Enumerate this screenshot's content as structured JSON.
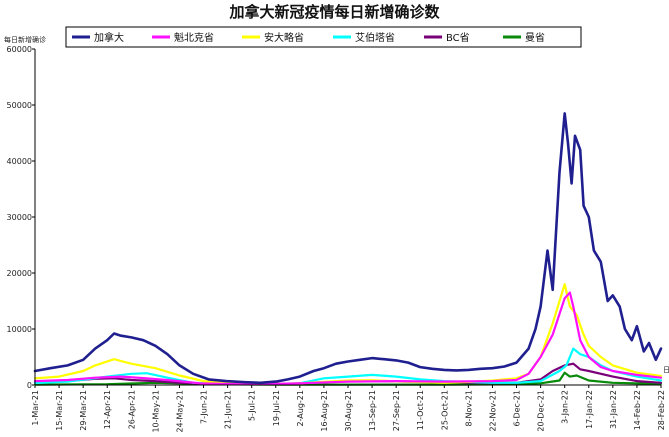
{
  "chart_data": {
    "type": "line",
    "title": "加拿大新冠疫情每日新增确诊数",
    "ylabel": "每日新增确诊",
    "xlabel": "日期",
    "ylim": [
      0,
      60000
    ],
    "yticks": [
      0,
      10000,
      20000,
      30000,
      40000,
      50000,
      60000
    ],
    "xlim": [
      "2021-03-01",
      "2022-02-28"
    ],
    "grid": false,
    "legend_position": "top",
    "x_tick_labels": [
      "1-Mar-21",
      "15-Mar-21",
      "29-Mar-21",
      "12-Apr-21",
      "26-Apr-21",
      "10-May-21",
      "24-May-21",
      "7-Jun-21",
      "21-Jun-21",
      "5-Jul-21",
      "19-Jul-21",
      "2-Aug-21",
      "16-Aug-21",
      "30-Aug-21",
      "13-Sep-21",
      "27-Sep-21",
      "11-Oct-21",
      "25-Oct-21",
      "8-Nov-21",
      "22-Nov-21",
      "6-Dec-21",
      "20-Dec-21",
      "3-Jan-22",
      "17-Jan-22",
      "31-Jan-22",
      "14-Feb-22",
      "28-Feb-22"
    ],
    "x_tick_dates": [
      "2021-03-01",
      "2021-03-15",
      "2021-03-29",
      "2021-04-12",
      "2021-04-26",
      "2021-05-10",
      "2021-05-24",
      "2021-06-07",
      "2021-06-21",
      "2021-07-05",
      "2021-07-19",
      "2021-08-02",
      "2021-08-16",
      "2021-08-30",
      "2021-09-13",
      "2021-09-27",
      "2021-10-11",
      "2021-10-25",
      "2021-11-08",
      "2021-11-22",
      "2021-12-06",
      "2021-12-20",
      "2022-01-03",
      "2022-01-17",
      "2022-01-31",
      "2022-02-14",
      "2022-02-28"
    ],
    "series": [
      {
        "name": "加拿大",
        "color": "#1f1f8f",
        "width": 2.6,
        "points": [
          [
            "2021-03-01",
            2500
          ],
          [
            "2021-03-10",
            3000
          ],
          [
            "2021-03-20",
            3500
          ],
          [
            "2021-03-29",
            4500
          ],
          [
            "2021-04-05",
            6500
          ],
          [
            "2021-04-12",
            8000
          ],
          [
            "2021-04-16",
            9200
          ],
          [
            "2021-04-20",
            8800
          ],
          [
            "2021-04-26",
            8500
          ],
          [
            "2021-05-03",
            8000
          ],
          [
            "2021-05-10",
            7000
          ],
          [
            "2021-05-17",
            5500
          ],
          [
            "2021-05-24",
            3500
          ],
          [
            "2021-06-01",
            2000
          ],
          [
            "2021-06-10",
            1000
          ],
          [
            "2021-06-20",
            700
          ],
          [
            "2021-07-01",
            500
          ],
          [
            "2021-07-10",
            400
          ],
          [
            "2021-07-19",
            600
          ],
          [
            "2021-07-26",
            1000
          ],
          [
            "2021-08-02",
            1500
          ],
          [
            "2021-08-10",
            2500
          ],
          [
            "2021-08-16",
            3000
          ],
          [
            "2021-08-23",
            3800
          ],
          [
            "2021-08-30",
            4200
          ],
          [
            "2021-09-06",
            4500
          ],
          [
            "2021-09-13",
            4800
          ],
          [
            "2021-09-20",
            4600
          ],
          [
            "2021-09-27",
            4400
          ],
          [
            "2021-10-04",
            4000
          ],
          [
            "2021-10-11",
            3200
          ],
          [
            "2021-10-18",
            2900
          ],
          [
            "2021-10-25",
            2700
          ],
          [
            "2021-11-01",
            2600
          ],
          [
            "2021-11-08",
            2700
          ],
          [
            "2021-11-15",
            2900
          ],
          [
            "2021-11-22",
            3000
          ],
          [
            "2021-11-29",
            3300
          ],
          [
            "2021-12-06",
            4000
          ],
          [
            "2021-12-13",
            6500
          ],
          [
            "2021-12-17",
            10000
          ],
          [
            "2021-12-20",
            14000
          ],
          [
            "2021-12-24",
            24000
          ],
          [
            "2021-12-27",
            17000
          ],
          [
            "2021-12-31",
            38000
          ],
          [
            "2022-01-03",
            48500
          ],
          [
            "2022-01-05",
            43000
          ],
          [
            "2022-01-07",
            36000
          ],
          [
            "2022-01-09",
            44500
          ],
          [
            "2022-01-12",
            42000
          ],
          [
            "2022-01-14",
            32000
          ],
          [
            "2022-01-17",
            30000
          ],
          [
            "2022-01-20",
            24000
          ],
          [
            "2022-01-24",
            22000
          ],
          [
            "2022-01-28",
            15000
          ],
          [
            "2022-01-31",
            16000
          ],
          [
            "2022-02-04",
            14000
          ],
          [
            "2022-02-07",
            10000
          ],
          [
            "2022-02-11",
            8000
          ],
          [
            "2022-02-14",
            10500
          ],
          [
            "2022-02-18",
            6000
          ],
          [
            "2022-02-21",
            7500
          ],
          [
            "2022-02-25",
            4500
          ],
          [
            "2022-02-28",
            6500
          ]
        ]
      },
      {
        "name": "魁北克省",
        "color": "#ff10ff",
        "width": 2.2,
        "points": [
          [
            "2021-03-01",
            700
          ],
          [
            "2021-03-20",
            900
          ],
          [
            "2021-04-05",
            1300
          ],
          [
            "2021-04-20",
            1500
          ],
          [
            "2021-05-05",
            1200
          ],
          [
            "2021-05-20",
            800
          ],
          [
            "2021-06-05",
            300
          ],
          [
            "2021-07-01",
            100
          ],
          [
            "2021-08-02",
            300
          ],
          [
            "2021-08-30",
            600
          ],
          [
            "2021-09-27",
            700
          ],
          [
            "2021-10-25",
            600
          ],
          [
            "2021-11-22",
            700
          ],
          [
            "2021-12-06",
            900
          ],
          [
            "2021-12-13",
            2000
          ],
          [
            "2021-12-20",
            5000
          ],
          [
            "2021-12-27",
            9000
          ],
          [
            "2022-01-03",
            15500
          ],
          [
            "2022-01-06",
            16500
          ],
          [
            "2022-01-08",
            14000
          ],
          [
            "2022-01-12",
            8000
          ],
          [
            "2022-01-17",
            5000
          ],
          [
            "2022-01-24",
            3200
          ],
          [
            "2022-01-31",
            2500
          ],
          [
            "2022-02-14",
            1800
          ],
          [
            "2022-02-28",
            1300
          ]
        ]
      },
      {
        "name": "安大略省",
        "color": "#ffff00",
        "width": 2.2,
        "points": [
          [
            "2021-03-01",
            1200
          ],
          [
            "2021-03-15",
            1500
          ],
          [
            "2021-03-29",
            2500
          ],
          [
            "2021-04-05",
            3500
          ],
          [
            "2021-04-16",
            4600
          ],
          [
            "2021-04-26",
            3800
          ],
          [
            "2021-05-10",
            3000
          ],
          [
            "2021-05-24",
            1700
          ],
          [
            "2021-06-07",
            700
          ],
          [
            "2021-06-21",
            300
          ],
          [
            "2021-07-19",
            200
          ],
          [
            "2021-08-02",
            300
          ],
          [
            "2021-08-30",
            800
          ],
          [
            "2021-09-13",
            850
          ],
          [
            "2021-09-27",
            650
          ],
          [
            "2021-10-25",
            400
          ],
          [
            "2021-11-08",
            550
          ],
          [
            "2021-11-22",
            800
          ],
          [
            "2021-12-06",
            1200
          ],
          [
            "2021-12-13",
            2000
          ],
          [
            "2021-12-20",
            5000
          ],
          [
            "2021-12-27",
            11000
          ],
          [
            "2022-01-03",
            18000
          ],
          [
            "2022-01-06",
            14000
          ],
          [
            "2022-01-10",
            12500
          ],
          [
            "2022-01-14",
            9000
          ],
          [
            "2022-01-17",
            7000
          ],
          [
            "2022-01-24",
            5000
          ],
          [
            "2022-01-31",
            3500
          ],
          [
            "2022-02-14",
            2200
          ],
          [
            "2022-02-28",
            1600
          ]
        ]
      },
      {
        "name": "艾伯塔省",
        "color": "#00ffff",
        "width": 2.2,
        "points": [
          [
            "2021-03-01",
            350
          ],
          [
            "2021-03-20",
            600
          ],
          [
            "2021-04-12",
            1500
          ],
          [
            "2021-04-26",
            2000
          ],
          [
            "2021-05-05",
            2100
          ],
          [
            "2021-05-17",
            1300
          ],
          [
            "2021-06-01",
            400
          ],
          [
            "2021-07-01",
            100
          ],
          [
            "2021-08-02",
            300
          ],
          [
            "2021-08-16",
            1200
          ],
          [
            "2021-08-30",
            1500
          ],
          [
            "2021-09-13",
            1800
          ],
          [
            "2021-09-27",
            1500
          ],
          [
            "2021-10-11",
            1000
          ],
          [
            "2021-10-25",
            700
          ],
          [
            "2021-11-22",
            400
          ],
          [
            "2021-12-06",
            400
          ],
          [
            "2021-12-20",
            700
          ],
          [
            "2021-12-31",
            2500
          ],
          [
            "2022-01-04",
            3500
          ],
          [
            "2022-01-08",
            6500
          ],
          [
            "2022-01-12",
            5500
          ],
          [
            "2022-01-17",
            5000
          ],
          [
            "2022-01-24",
            3500
          ],
          [
            "2022-01-31",
            2500
          ],
          [
            "2022-02-14",
            1500
          ],
          [
            "2022-02-28",
            800
          ]
        ]
      },
      {
        "name": "BC省",
        "color": "#7a007a",
        "width": 2.2,
        "points": [
          [
            "2021-03-01",
            500
          ],
          [
            "2021-03-20",
            700
          ],
          [
            "2021-04-05",
            1100
          ],
          [
            "2021-04-16",
            1200
          ],
          [
            "2021-04-26",
            900
          ],
          [
            "2021-05-10",
            700
          ],
          [
            "2021-05-24",
            400
          ],
          [
            "2021-06-21",
            100
          ],
          [
            "2021-07-19",
            100
          ],
          [
            "2021-08-02",
            300
          ],
          [
            "2021-08-16",
            500
          ],
          [
            "2021-08-30",
            700
          ],
          [
            "2021-09-13",
            700
          ],
          [
            "2021-09-27",
            650
          ],
          [
            "2021-10-25",
            500
          ],
          [
            "2021-11-22",
            350
          ],
          [
            "2021-12-06",
            400
          ],
          [
            "2021-12-20",
            1000
          ],
          [
            "2021-12-27",
            2500
          ],
          [
            "2022-01-03",
            3500
          ],
          [
            "2022-01-08",
            3800
          ],
          [
            "2022-01-12",
            2800
          ],
          [
            "2022-01-17",
            2500
          ],
          [
            "2022-01-31",
            1500
          ],
          [
            "2022-02-14",
            700
          ],
          [
            "2022-02-28",
            400
          ]
        ]
      },
      {
        "name": "曼省",
        "color": "#0a8a0a",
        "width": 2.2,
        "points": [
          [
            "2021-03-01",
            80
          ],
          [
            "2021-04-12",
            150
          ],
          [
            "2021-05-10",
            400
          ],
          [
            "2021-05-24",
            300
          ],
          [
            "2021-06-07",
            150
          ],
          [
            "2021-07-19",
            50
          ],
          [
            "2021-09-13",
            80
          ],
          [
            "2021-10-25",
            80
          ],
          [
            "2021-11-22",
            100
          ],
          [
            "2021-12-20",
            300
          ],
          [
            "2021-12-31",
            800
          ],
          [
            "2022-01-03",
            2200
          ],
          [
            "2022-01-06",
            1500
          ],
          [
            "2022-01-10",
            1700
          ],
          [
            "2022-01-17",
            800
          ],
          [
            "2022-01-31",
            400
          ],
          [
            "2022-02-28",
            200
          ]
        ]
      }
    ]
  }
}
